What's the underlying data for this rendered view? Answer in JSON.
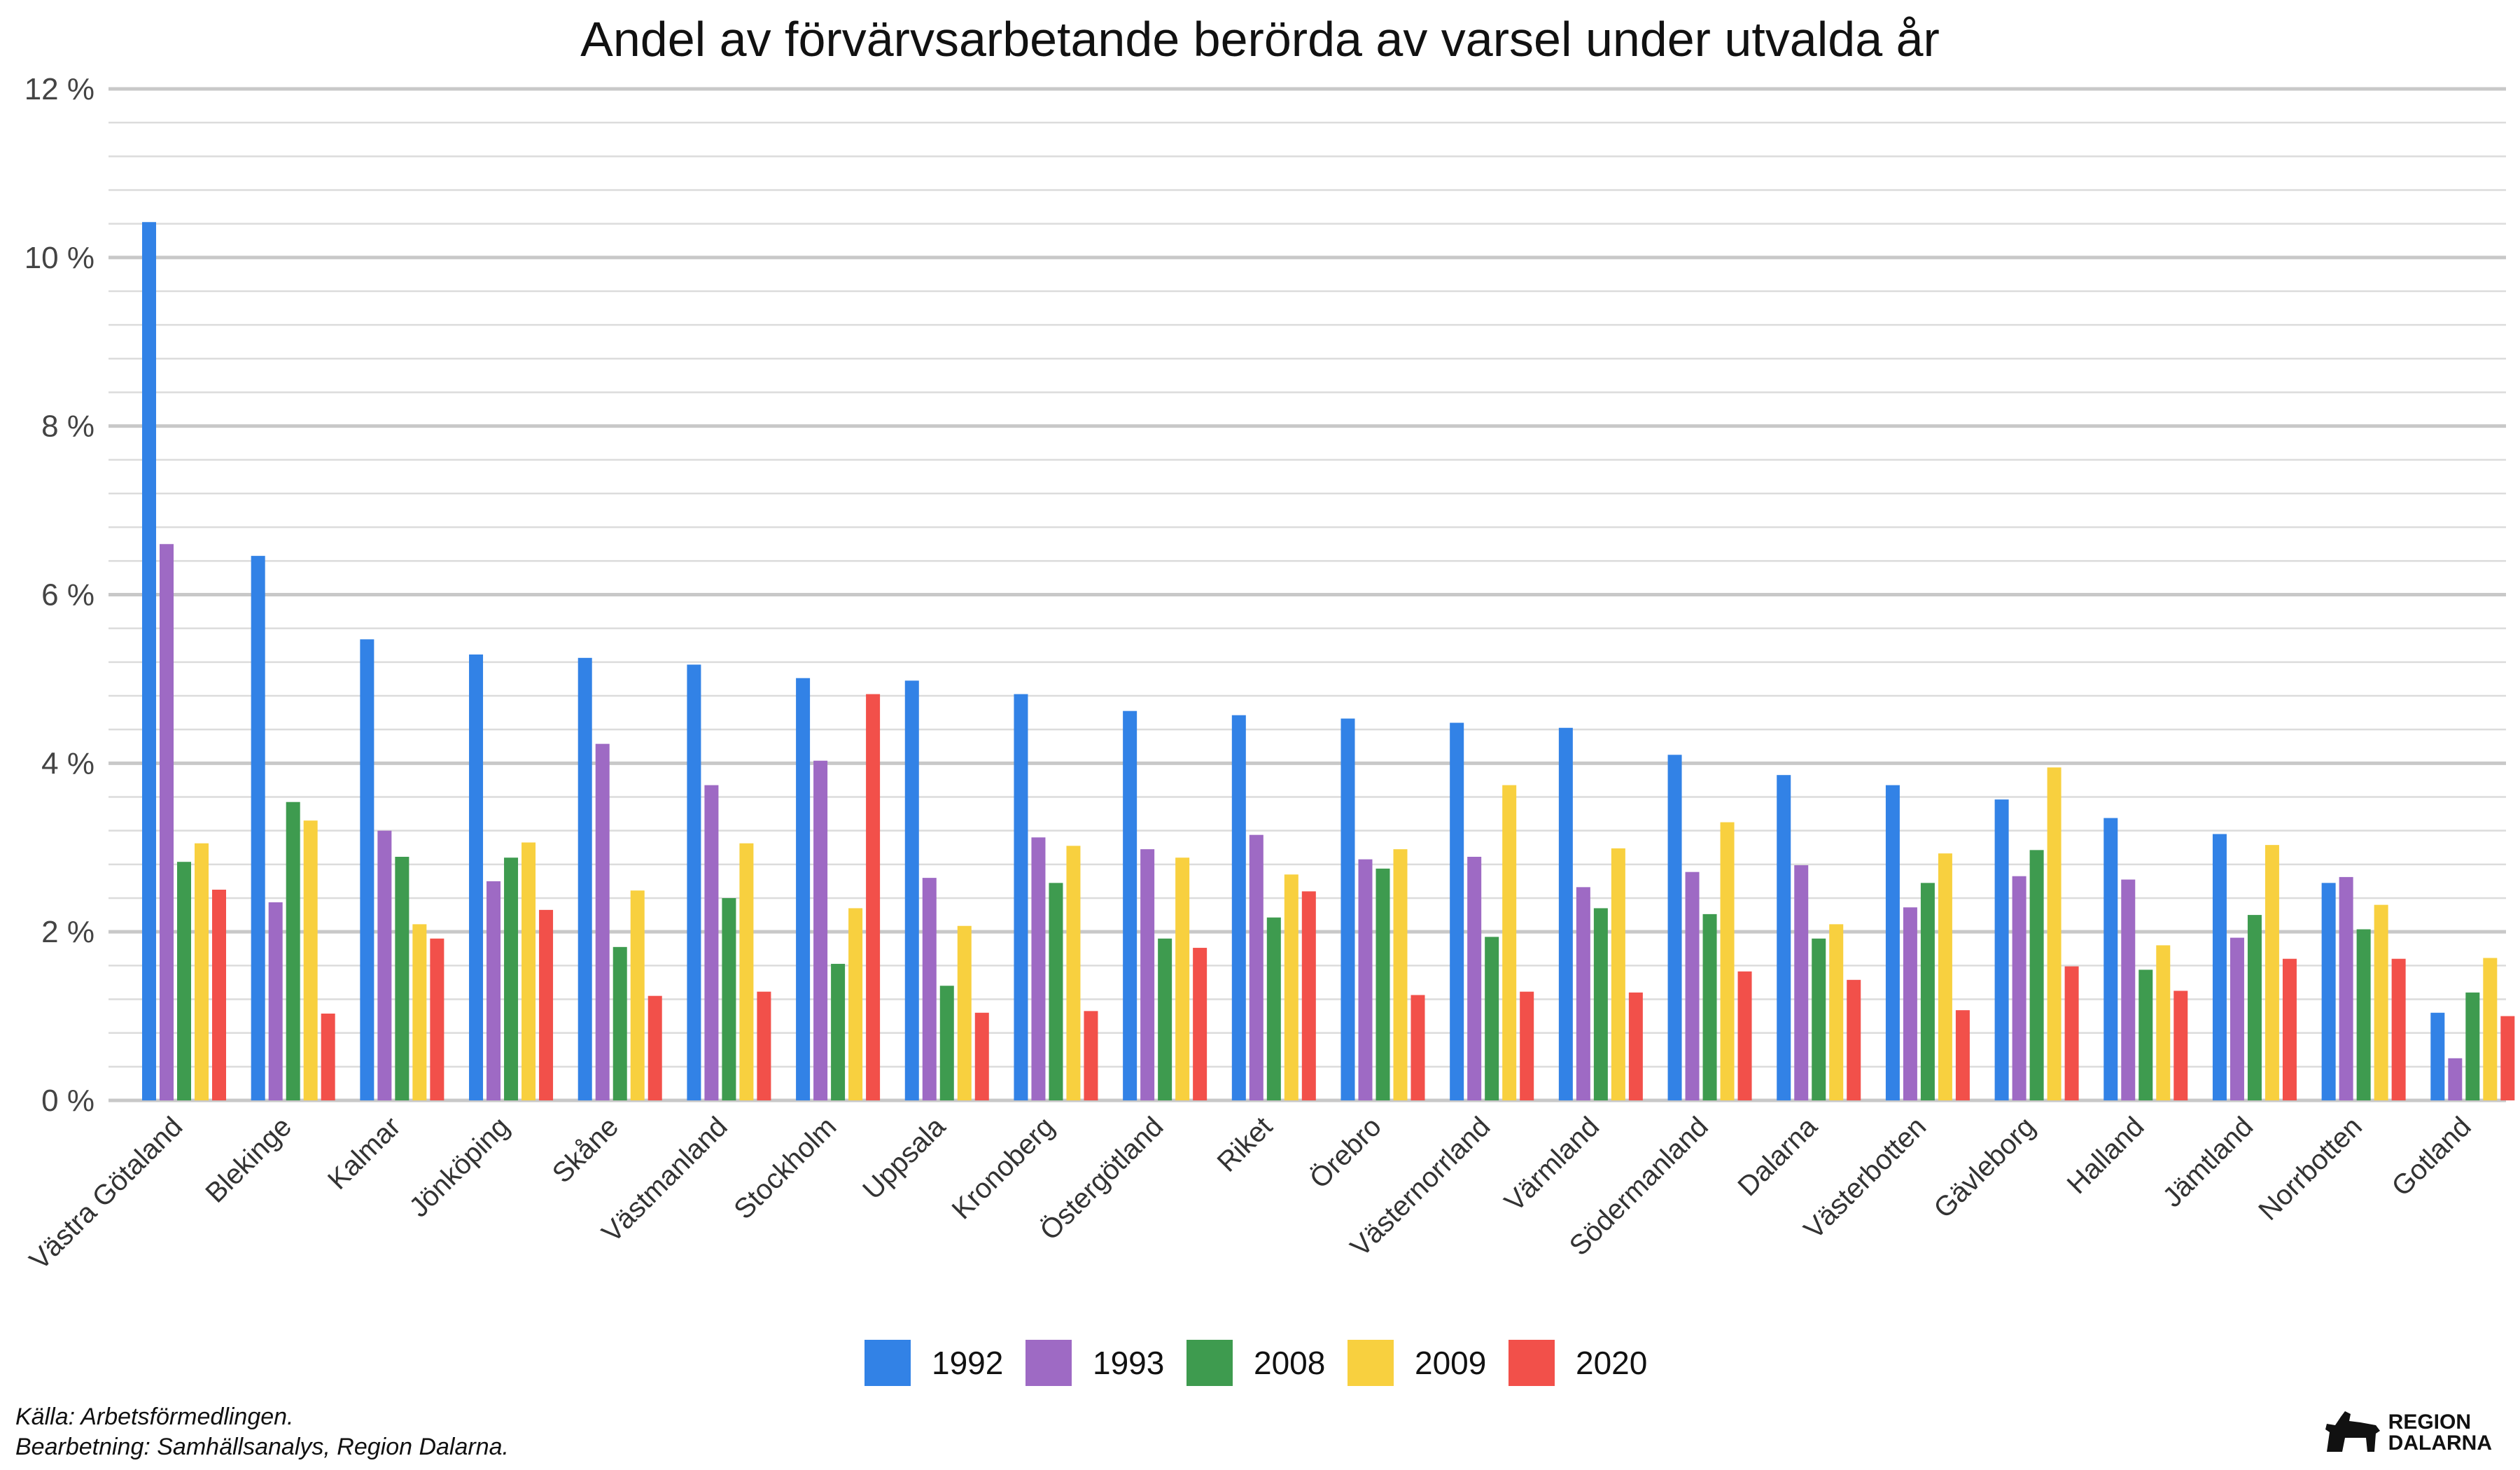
{
  "chart_data": {
    "type": "bar",
    "title": "Andel av förvärvsarbetande berörda av varsel under utvalda år",
    "xlabel": "",
    "ylabel": "",
    "ylim": [
      0,
      12
    ],
    "yticks": [
      {
        "value": 0,
        "label": "0 %"
      },
      {
        "value": 2,
        "label": "2 %"
      },
      {
        "value": 4,
        "label": "4 %"
      },
      {
        "value": 6,
        "label": "6 %"
      },
      {
        "value": 8,
        "label": "8 %"
      },
      {
        "value": 10,
        "label": "10 %"
      },
      {
        "value": 12,
        "label": "12 %"
      }
    ],
    "grid": true,
    "legend_position": "bottom",
    "categories": [
      "Västra Götaland",
      "Blekinge",
      "Kalmar",
      "Jönköping",
      "Skåne",
      "Västmanland",
      "Stockholm",
      "Uppsala",
      "Kronoberg",
      "Östergötland",
      "Riket",
      "Örebro",
      "Västernorrland",
      "Värmland",
      "Södermanland",
      "Dalarna",
      "Västerbotten",
      "Gävleborg",
      "Halland",
      "Jämtland",
      "Norrbotten",
      "Gotland"
    ],
    "series": [
      {
        "name": "1992",
        "color": "#3282e6",
        "values": [
          10.42,
          6.46,
          5.47,
          5.29,
          5.25,
          5.17,
          5.01,
          4.98,
          4.82,
          4.62,
          4.57,
          4.53,
          4.48,
          4.42,
          4.1,
          3.86,
          3.74,
          3.57,
          3.35,
          3.16,
          2.58,
          1.04
        ]
      },
      {
        "name": "1993",
        "color": "#9e6ac4",
        "values": [
          6.6,
          2.35,
          3.2,
          2.6,
          4.23,
          3.74,
          4.03,
          2.64,
          3.12,
          2.98,
          3.15,
          2.86,
          2.89,
          2.53,
          2.71,
          2.79,
          2.29,
          2.66,
          2.62,
          1.93,
          2.65,
          0.5
        ]
      },
      {
        "name": "2008",
        "color": "#3e9b4f",
        "values": [
          2.83,
          3.54,
          2.89,
          2.88,
          1.82,
          2.4,
          1.62,
          1.36,
          2.58,
          1.92,
          2.17,
          2.75,
          1.94,
          2.28,
          2.21,
          1.92,
          2.58,
          2.97,
          1.55,
          2.2,
          2.03,
          1.28
        ]
      },
      {
        "name": "2009",
        "color": "#f8d03f",
        "values": [
          3.05,
          3.32,
          2.09,
          3.06,
          2.49,
          3.05,
          2.28,
          2.07,
          3.02,
          2.88,
          2.68,
          2.98,
          3.74,
          2.99,
          3.3,
          2.09,
          2.93,
          3.95,
          1.84,
          3.03,
          2.32,
          1.69
        ]
      },
      {
        "name": "2020",
        "color": "#f2504a",
        "values": [
          2.5,
          1.03,
          1.92,
          2.26,
          1.24,
          1.29,
          4.82,
          1.04,
          1.06,
          1.81,
          2.48,
          1.25,
          1.29,
          1.28,
          1.53,
          1.43,
          1.07,
          1.59,
          1.3,
          1.68,
          1.68,
          1.0
        ]
      }
    ]
  },
  "footer": {
    "source_line1": "Källa: Arbetsförmedlingen.",
    "source_line2": "Bearbetning: Samhällsanalys, Region Dalarna.",
    "logo_line1": "REGION",
    "logo_line2": "DALARNA",
    "logo_icon": "dalahorse-icon"
  }
}
